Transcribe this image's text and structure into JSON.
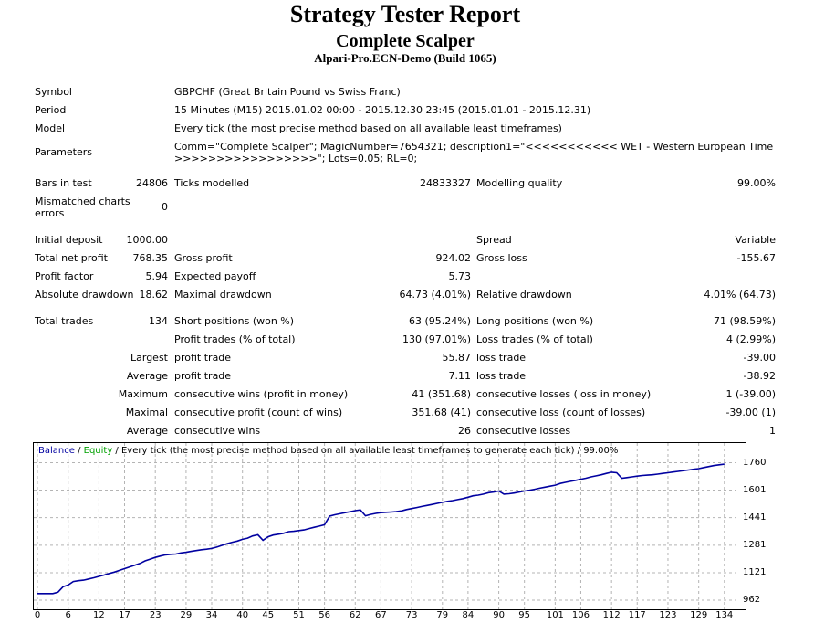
{
  "header": {
    "title": "Strategy Tester Report",
    "subtitle": "Complete Scalper",
    "server": "Alpari-Pro.ECN-Demo (Build 1065)"
  },
  "info": {
    "symbol_label": "Symbol",
    "symbol_value": "GBPCHF (Great Britain Pound vs Swiss Franc)",
    "period_label": "Period",
    "period_value": "15 Minutes (M15) 2015.01.02 00:00 - 2015.12.30 23:45 (2015.01.01 - 2015.12.31)",
    "model_label": "Model",
    "model_value": "Every tick (the most precise method based on all available least timeframes)",
    "parameters_label": "Parameters",
    "parameters_line1": "Comm=\"Complete Scalper\"; MagicNumber=7654321; description1=\"<<<<<<<<<<< WET - Western European Time",
    "parameters_line2": ">>>>>>>>>>>>>>>>>\"; Lots=0.05; RL=0;"
  },
  "stats": {
    "bars_label": "Bars in test",
    "bars_value": "24806",
    "ticks_label": "Ticks modelled",
    "ticks_value": "24833327",
    "quality_label": "Modelling quality",
    "quality_value": "99.00%",
    "mismatch_label_1": "Mismatched charts",
    "mismatch_label_2": "errors",
    "mismatch_value": "0",
    "deposit_label": "Initial deposit",
    "deposit_value": "1000.00",
    "spread_label": "Spread",
    "spread_value": "Variable",
    "net_label": "Total net profit",
    "net_value": "768.35",
    "gross_profit_label": "Gross profit",
    "gross_profit_value": "924.02",
    "gross_loss_label": "Gross loss",
    "gross_loss_value": "-155.67",
    "pf_label": "Profit factor",
    "pf_value": "5.94",
    "ep_label": "Expected payoff",
    "ep_value": "5.73",
    "abs_dd_label": "Absolute drawdown",
    "abs_dd_value": "18.62",
    "max_dd_label": "Maximal drawdown",
    "max_dd_value": "64.73 (4.01%)",
    "rel_dd_label": "Relative drawdown",
    "rel_dd_value": "4.01% (64.73)",
    "trades_label": "Total trades",
    "trades_value": "134",
    "short_label": "Short positions (won %)",
    "short_value": "63 (95.24%)",
    "long_label": "Long positions (won %)",
    "long_value": "71 (98.59%)",
    "profit_trades_label": "Profit trades (% of total)",
    "profit_trades_value": "130 (97.01%)",
    "loss_trades_label": "Loss trades (% of total)",
    "loss_trades_value": "4 (2.99%)",
    "largest_label": "Largest",
    "largest_profit_label": "profit trade",
    "largest_profit_value": "55.87",
    "largest_loss_label": "loss trade",
    "largest_loss_value": "-39.00",
    "average_label": "Average",
    "avg_profit_label": "profit trade",
    "avg_profit_value": "7.11",
    "avg_loss_label": "loss trade",
    "avg_loss_value": "-38.92",
    "maximum_label": "Maximum",
    "max_cons_wins_label": "consecutive wins (profit in money)",
    "max_cons_wins_value": "41 (351.68)",
    "max_cons_losses_label": "consecutive losses (loss in money)",
    "max_cons_losses_value": "1 (-39.00)",
    "maximal_label": "Maximal",
    "maximal_cons_profit_label": "consecutive profit (count of wins)",
    "maximal_cons_profit_value": "351.68 (41)",
    "maximal_cons_loss_label": "consecutive loss (count of losses)",
    "maximal_cons_loss_value": "-39.00 (1)",
    "average2_label": "Average",
    "avg_cons_wins_label": "consecutive wins",
    "avg_cons_wins_value": "26",
    "avg_cons_losses_label": "consecutive losses",
    "avg_cons_losses_value": "1"
  },
  "chart_data": {
    "type": "line",
    "legend": {
      "balance": "Balance",
      "sep1": " / ",
      "equity": "Equity",
      "rest": " / Every tick (the most precise method based on all available least timeframes to generate each tick) / 99.00%"
    },
    "colors": {
      "balance": "#0000a0",
      "equity": "#00a000",
      "grid": "#b4b4b4"
    },
    "grid": true,
    "xlim": [
      0,
      136
    ],
    "ylim": [
      962,
      1800
    ],
    "x_ticks": [
      "0",
      "6",
      "12",
      "17",
      "23",
      "29",
      "34",
      "40",
      "45",
      "51",
      "56",
      "62",
      "67",
      "73",
      "79",
      "84",
      "90",
      "95",
      "101",
      "106",
      "112",
      "117",
      "123",
      "129",
      "134"
    ],
    "y_ticks": [
      "1760",
      "1601",
      "1441",
      "1281",
      "1121",
      "962"
    ],
    "series": [
      {
        "name": "Balance",
        "x": [
          0,
          1,
          2,
          3,
          4,
          5,
          6,
          7,
          8,
          9,
          10,
          11,
          12,
          13,
          14,
          15,
          16,
          17,
          18,
          19,
          20,
          21,
          22,
          23,
          24,
          25,
          26,
          27,
          28,
          29,
          30,
          31,
          32,
          33,
          34,
          35,
          36,
          37,
          38,
          39,
          40,
          41,
          42,
          43,
          44,
          45,
          46,
          47,
          48,
          49,
          50,
          51,
          52,
          53,
          54,
          55,
          56,
          57,
          58,
          59,
          60,
          61,
          62,
          63,
          64,
          65,
          66,
          67,
          68,
          69,
          70,
          71,
          72,
          73,
          74,
          75,
          76,
          77,
          78,
          79,
          80,
          81,
          82,
          83,
          84,
          85,
          86,
          87,
          88,
          89,
          90,
          91,
          92,
          93,
          94,
          95,
          96,
          97,
          98,
          99,
          100,
          101,
          102,
          103,
          104,
          105,
          106,
          107,
          108,
          109,
          110,
          111,
          112,
          113,
          114,
          115,
          116,
          117,
          118,
          119,
          120,
          121,
          122,
          123,
          124,
          125,
          126,
          127,
          128,
          129,
          130,
          131,
          132,
          133,
          134
        ],
        "y": [
          1000,
          1000,
          1000,
          1000,
          1008,
          1040,
          1050,
          1070,
          1075,
          1078,
          1085,
          1092,
          1100,
          1108,
          1117,
          1125,
          1135,
          1145,
          1155,
          1165,
          1175,
          1190,
          1200,
          1210,
          1218,
          1225,
          1228,
          1230,
          1236,
          1240,
          1245,
          1250,
          1255,
          1258,
          1262,
          1270,
          1280,
          1290,
          1298,
          1305,
          1315,
          1322,
          1335,
          1342,
          1310,
          1330,
          1340,
          1345,
          1350,
          1360,
          1362,
          1366,
          1370,
          1378,
          1385,
          1392,
          1400,
          1450,
          1458,
          1464,
          1470,
          1476,
          1482,
          1486,
          1452,
          1460,
          1466,
          1470,
          1472,
          1474,
          1476,
          1480,
          1488,
          1494,
          1500,
          1506,
          1512,
          1518,
          1524,
          1530,
          1536,
          1540,
          1546,
          1552,
          1560,
          1568,
          1572,
          1578,
          1586,
          1590,
          1596,
          1578,
          1580,
          1584,
          1590,
          1596,
          1600,
          1606,
          1612,
          1618,
          1624,
          1630,
          1640,
          1646,
          1652,
          1658,
          1664,
          1670,
          1678,
          1684,
          1690,
          1698,
          1705,
          1702,
          1670,
          1674,
          1678,
          1682,
          1686,
          1688,
          1690,
          1694,
          1698,
          1702,
          1706,
          1710,
          1714,
          1718,
          1722,
          1726,
          1732,
          1738,
          1744,
          1748,
          1752
        ]
      }
    ]
  }
}
